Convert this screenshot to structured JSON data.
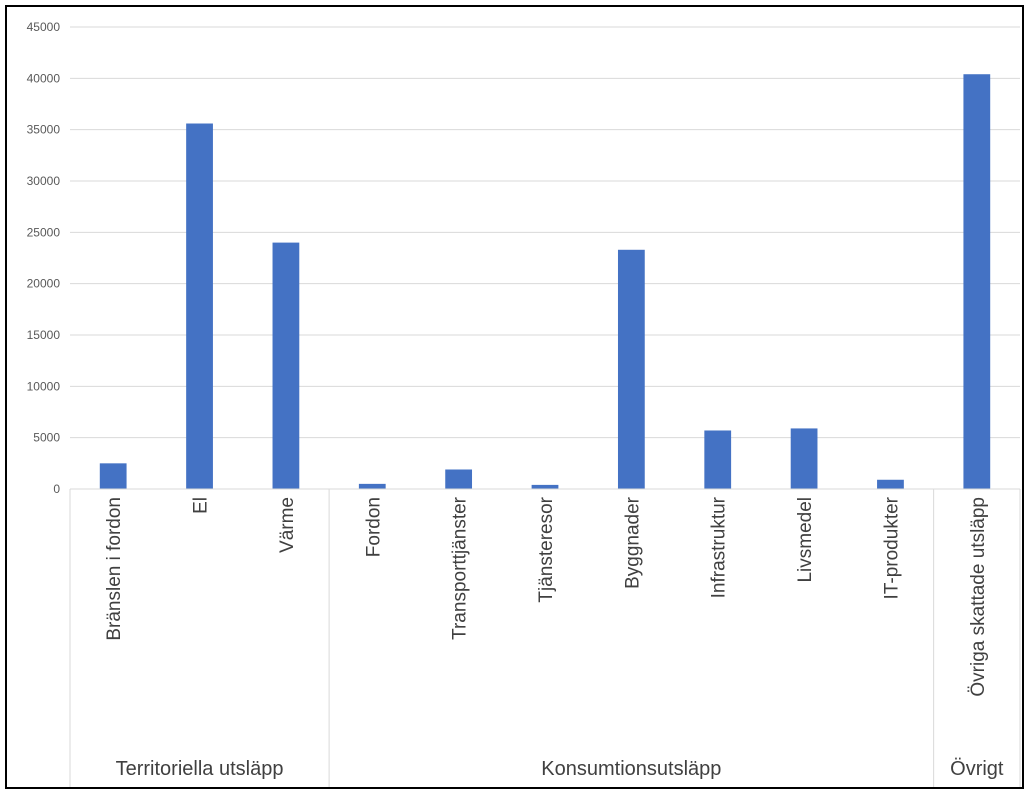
{
  "chart_data": {
    "type": "bar",
    "title": "",
    "xlabel": "",
    "ylabel": "",
    "ylim": [
      0,
      45000
    ],
    "yticks": [
      0,
      5000,
      10000,
      15000,
      20000,
      25000,
      30000,
      35000,
      40000,
      45000
    ],
    "grid": true,
    "legend": "none",
    "bar_color": "#4472C4",
    "categories": [
      "Bränslen i fordon",
      "El",
      "Värme",
      "Fordon",
      "Transporttjänster",
      "Tjänsteresor",
      "Byggnader",
      "Infrastruktur",
      "Livsmedel",
      "IT-produkter",
      "Övriga skattade utsläpp"
    ],
    "values": [
      2500,
      35600,
      24000,
      500,
      1900,
      400,
      23300,
      5700,
      5900,
      900,
      40400
    ],
    "groups": [
      {
        "label": "Territoriella utsläpp",
        "count": 3
      },
      {
        "label": "Konsumtionsutsläpp",
        "count": 7
      },
      {
        "label": "Övrigt",
        "count": 1
      }
    ]
  }
}
